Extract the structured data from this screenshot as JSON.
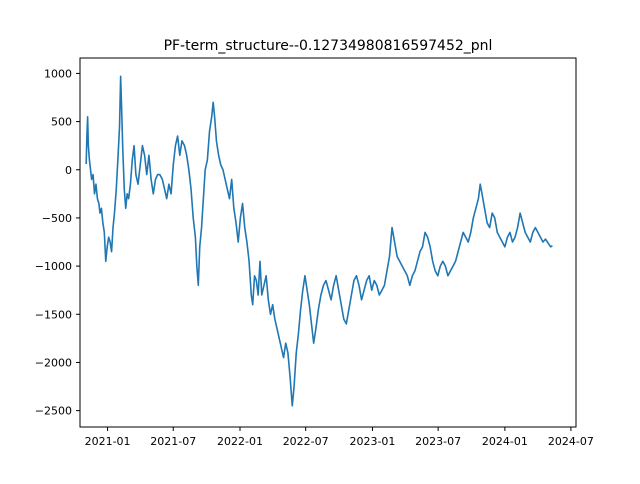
{
  "chart_data": {
    "type": "line",
    "title": "PF-term_structure--0.12734980816597452_pnl",
    "xlabel": "",
    "ylabel": "",
    "xlim": [
      "2020-10-17",
      "2024-07-15"
    ],
    "ylim": [
      -2670,
      1160
    ],
    "grid": false,
    "legend": "none",
    "x_ticks": [
      {
        "date": "2021-01-01",
        "label": "2021-01"
      },
      {
        "date": "2021-07-01",
        "label": "2021-07"
      },
      {
        "date": "2022-01-01",
        "label": "2022-01"
      },
      {
        "date": "2022-07-01",
        "label": "2022-07"
      },
      {
        "date": "2023-01-01",
        "label": "2023-01"
      },
      {
        "date": "2023-07-01",
        "label": "2023-07"
      },
      {
        "date": "2024-01-01",
        "label": "2024-01"
      },
      {
        "date": "2024-07-01",
        "label": "2024-07"
      }
    ],
    "y_ticks": [
      {
        "value": 1000,
        "label": "1000"
      },
      {
        "value": 500,
        "label": "500"
      },
      {
        "value": 0,
        "label": "0"
      },
      {
        "value": -500,
        "label": "−500"
      },
      {
        "value": -1000,
        "label": "−1000"
      },
      {
        "value": -1500,
        "label": "−1500"
      },
      {
        "value": -2000,
        "label": "−2000"
      },
      {
        "value": -2500,
        "label": "−2500"
      }
    ],
    "series": [
      {
        "color": "#1f77b4",
        "points": [
          [
            "2020-11-03",
            60
          ],
          [
            "2020-11-05",
            350
          ],
          [
            "2020-11-07",
            550
          ],
          [
            "2020-11-09",
            250
          ],
          [
            "2020-11-12",
            100
          ],
          [
            "2020-11-15",
            0
          ],
          [
            "2020-11-18",
            -100
          ],
          [
            "2020-11-22",
            -50
          ],
          [
            "2020-11-26",
            -250
          ],
          [
            "2020-11-30",
            -150
          ],
          [
            "2020-12-04",
            -300
          ],
          [
            "2020-12-08",
            -350
          ],
          [
            "2020-12-11",
            -450
          ],
          [
            "2020-12-15",
            -400
          ],
          [
            "2020-12-19",
            -550
          ],
          [
            "2020-12-23",
            -650
          ],
          [
            "2020-12-27",
            -950
          ],
          [
            "2020-12-31",
            -800
          ],
          [
            "2021-01-04",
            -700
          ],
          [
            "2021-01-08",
            -750
          ],
          [
            "2021-01-12",
            -850
          ],
          [
            "2021-01-16",
            -600
          ],
          [
            "2021-01-20",
            -450
          ],
          [
            "2021-01-25",
            -200
          ],
          [
            "2021-01-30",
            150
          ],
          [
            "2021-02-03",
            450
          ],
          [
            "2021-02-06",
            970
          ],
          [
            "2021-02-09",
            600
          ],
          [
            "2021-02-12",
            200
          ],
          [
            "2021-02-16",
            -200
          ],
          [
            "2021-02-20",
            -400
          ],
          [
            "2021-02-24",
            -250
          ],
          [
            "2021-02-28",
            -300
          ],
          [
            "2021-03-05",
            -150
          ],
          [
            "2021-03-10",
            100
          ],
          [
            "2021-03-15",
            250
          ],
          [
            "2021-03-20",
            -50
          ],
          [
            "2021-03-26",
            -150
          ],
          [
            "2021-04-01",
            50
          ],
          [
            "2021-04-07",
            250
          ],
          [
            "2021-04-13",
            150
          ],
          [
            "2021-04-19",
            -50
          ],
          [
            "2021-04-25",
            150
          ],
          [
            "2021-05-01",
            -100
          ],
          [
            "2021-05-07",
            -250
          ],
          [
            "2021-05-13",
            -100
          ],
          [
            "2021-05-19",
            -50
          ],
          [
            "2021-05-25",
            -50
          ],
          [
            "2021-06-01",
            -100
          ],
          [
            "2021-06-07",
            -200
          ],
          [
            "2021-06-13",
            -300
          ],
          [
            "2021-06-19",
            -150
          ],
          [
            "2021-06-25",
            -250
          ],
          [
            "2021-07-01",
            50
          ],
          [
            "2021-07-07",
            250
          ],
          [
            "2021-07-13",
            350
          ],
          [
            "2021-07-19",
            150
          ],
          [
            "2021-07-25",
            300
          ],
          [
            "2021-08-01",
            250
          ],
          [
            "2021-08-07",
            150
          ],
          [
            "2021-08-13",
            0
          ],
          [
            "2021-08-19",
            -200
          ],
          [
            "2021-08-25",
            -500
          ],
          [
            "2021-08-31",
            -700
          ],
          [
            "2021-09-04",
            -1000
          ],
          [
            "2021-09-08",
            -1200
          ],
          [
            "2021-09-12",
            -800
          ],
          [
            "2021-09-17",
            -600
          ],
          [
            "2021-09-22",
            -300
          ],
          [
            "2021-09-27",
            0
          ],
          [
            "2021-10-03",
            100
          ],
          [
            "2021-10-09",
            400
          ],
          [
            "2021-10-15",
            550
          ],
          [
            "2021-10-19",
            700
          ],
          [
            "2021-10-23",
            550
          ],
          [
            "2021-10-28",
            300
          ],
          [
            "2021-11-03",
            150
          ],
          [
            "2021-11-09",
            50
          ],
          [
            "2021-11-15",
            0
          ],
          [
            "2021-11-21",
            -100
          ],
          [
            "2021-11-27",
            -200
          ],
          [
            "2021-12-03",
            -300
          ],
          [
            "2021-12-09",
            -100
          ],
          [
            "2021-12-15",
            -400
          ],
          [
            "2021-12-21",
            -550
          ],
          [
            "2021-12-27",
            -750
          ],
          [
            "2022-01-02",
            -500
          ],
          [
            "2022-01-08",
            -350
          ],
          [
            "2022-01-14",
            -600
          ],
          [
            "2022-01-20",
            -750
          ],
          [
            "2022-01-26",
            -950
          ],
          [
            "2022-02-01",
            -1300
          ],
          [
            "2022-02-05",
            -1400
          ],
          [
            "2022-02-10",
            -1100
          ],
          [
            "2022-02-15",
            -1150
          ],
          [
            "2022-02-20",
            -1300
          ],
          [
            "2022-02-25",
            -950
          ],
          [
            "2022-03-02",
            -1300
          ],
          [
            "2022-03-08",
            -1200
          ],
          [
            "2022-03-14",
            -1100
          ],
          [
            "2022-03-20",
            -1350
          ],
          [
            "2022-03-26",
            -1500
          ],
          [
            "2022-04-01",
            -1400
          ],
          [
            "2022-04-07",
            -1550
          ],
          [
            "2022-04-13",
            -1650
          ],
          [
            "2022-04-19",
            -1750
          ],
          [
            "2022-04-25",
            -1850
          ],
          [
            "2022-05-01",
            -1950
          ],
          [
            "2022-05-07",
            -1800
          ],
          [
            "2022-05-13",
            -1900
          ],
          [
            "2022-05-19",
            -2150
          ],
          [
            "2022-05-25",
            -2450
          ],
          [
            "2022-05-30",
            -2250
          ],
          [
            "2022-06-05",
            -1900
          ],
          [
            "2022-06-11",
            -1700
          ],
          [
            "2022-06-17",
            -1450
          ],
          [
            "2022-06-23",
            -1250
          ],
          [
            "2022-06-29",
            -1100
          ],
          [
            "2022-07-05",
            -1250
          ],
          [
            "2022-07-11",
            -1400
          ],
          [
            "2022-07-17",
            -1600
          ],
          [
            "2022-07-23",
            -1800
          ],
          [
            "2022-07-29",
            -1650
          ],
          [
            "2022-08-05",
            -1450
          ],
          [
            "2022-08-12",
            -1300
          ],
          [
            "2022-08-19",
            -1200
          ],
          [
            "2022-08-26",
            -1150
          ],
          [
            "2022-09-02",
            -1250
          ],
          [
            "2022-09-09",
            -1350
          ],
          [
            "2022-09-16",
            -1200
          ],
          [
            "2022-09-23",
            -1100
          ],
          [
            "2022-09-30",
            -1250
          ],
          [
            "2022-10-07",
            -1400
          ],
          [
            "2022-10-14",
            -1550
          ],
          [
            "2022-10-21",
            -1600
          ],
          [
            "2022-10-28",
            -1450
          ],
          [
            "2022-11-04",
            -1300
          ],
          [
            "2022-11-11",
            -1150
          ],
          [
            "2022-11-18",
            -1100
          ],
          [
            "2022-11-25",
            -1200
          ],
          [
            "2022-12-02",
            -1350
          ],
          [
            "2022-12-09",
            -1250
          ],
          [
            "2022-12-16",
            -1150
          ],
          [
            "2022-12-23",
            -1100
          ],
          [
            "2022-12-30",
            -1250
          ],
          [
            "2023-01-06",
            -1150
          ],
          [
            "2023-01-13",
            -1200
          ],
          [
            "2023-01-20",
            -1300
          ],
          [
            "2023-01-27",
            -1250
          ],
          [
            "2023-02-03",
            -1200
          ],
          [
            "2023-02-10",
            -1050
          ],
          [
            "2023-02-17",
            -900
          ],
          [
            "2023-02-24",
            -600
          ],
          [
            "2023-03-03",
            -750
          ],
          [
            "2023-03-10",
            -900
          ],
          [
            "2023-03-17",
            -950
          ],
          [
            "2023-03-24",
            -1000
          ],
          [
            "2023-03-31",
            -1050
          ],
          [
            "2023-04-07",
            -1100
          ],
          [
            "2023-04-14",
            -1200
          ],
          [
            "2023-04-21",
            -1100
          ],
          [
            "2023-04-28",
            -1050
          ],
          [
            "2023-05-05",
            -950
          ],
          [
            "2023-05-12",
            -850
          ],
          [
            "2023-05-19",
            -800
          ],
          [
            "2023-05-26",
            -650
          ],
          [
            "2023-06-02",
            -700
          ],
          [
            "2023-06-09",
            -800
          ],
          [
            "2023-06-16",
            -950
          ],
          [
            "2023-06-23",
            -1050
          ],
          [
            "2023-06-30",
            -1100
          ],
          [
            "2023-07-07",
            -1000
          ],
          [
            "2023-07-14",
            -950
          ],
          [
            "2023-07-21",
            -1000
          ],
          [
            "2023-07-28",
            -1100
          ],
          [
            "2023-08-04",
            -1050
          ],
          [
            "2023-08-11",
            -1000
          ],
          [
            "2023-08-18",
            -950
          ],
          [
            "2023-08-25",
            -850
          ],
          [
            "2023-09-01",
            -750
          ],
          [
            "2023-09-08",
            -650
          ],
          [
            "2023-09-15",
            -700
          ],
          [
            "2023-09-22",
            -750
          ],
          [
            "2023-09-29",
            -650
          ],
          [
            "2023-10-06",
            -500
          ],
          [
            "2023-10-13",
            -400
          ],
          [
            "2023-10-20",
            -300
          ],
          [
            "2023-10-25",
            -150
          ],
          [
            "2023-10-30",
            -250
          ],
          [
            "2023-11-06",
            -400
          ],
          [
            "2023-11-13",
            -550
          ],
          [
            "2023-11-20",
            -600
          ],
          [
            "2023-11-27",
            -450
          ],
          [
            "2023-12-04",
            -500
          ],
          [
            "2023-12-11",
            -650
          ],
          [
            "2023-12-18",
            -700
          ],
          [
            "2023-12-25",
            -750
          ],
          [
            "2024-01-01",
            -800
          ],
          [
            "2024-01-08",
            -700
          ],
          [
            "2024-01-15",
            -650
          ],
          [
            "2024-01-22",
            -750
          ],
          [
            "2024-01-29",
            -700
          ],
          [
            "2024-02-05",
            -600
          ],
          [
            "2024-02-12",
            -450
          ],
          [
            "2024-02-19",
            -550
          ],
          [
            "2024-02-26",
            -650
          ],
          [
            "2024-03-04",
            -700
          ],
          [
            "2024-03-11",
            -750
          ],
          [
            "2024-03-18",
            -650
          ],
          [
            "2024-03-25",
            -600
          ],
          [
            "2024-04-01",
            -650
          ],
          [
            "2024-04-08",
            -700
          ],
          [
            "2024-04-15",
            -750
          ],
          [
            "2024-04-22",
            -720
          ],
          [
            "2024-04-29",
            -760
          ],
          [
            "2024-05-06",
            -800
          ],
          [
            "2024-05-11",
            -790
          ]
        ]
      }
    ]
  }
}
